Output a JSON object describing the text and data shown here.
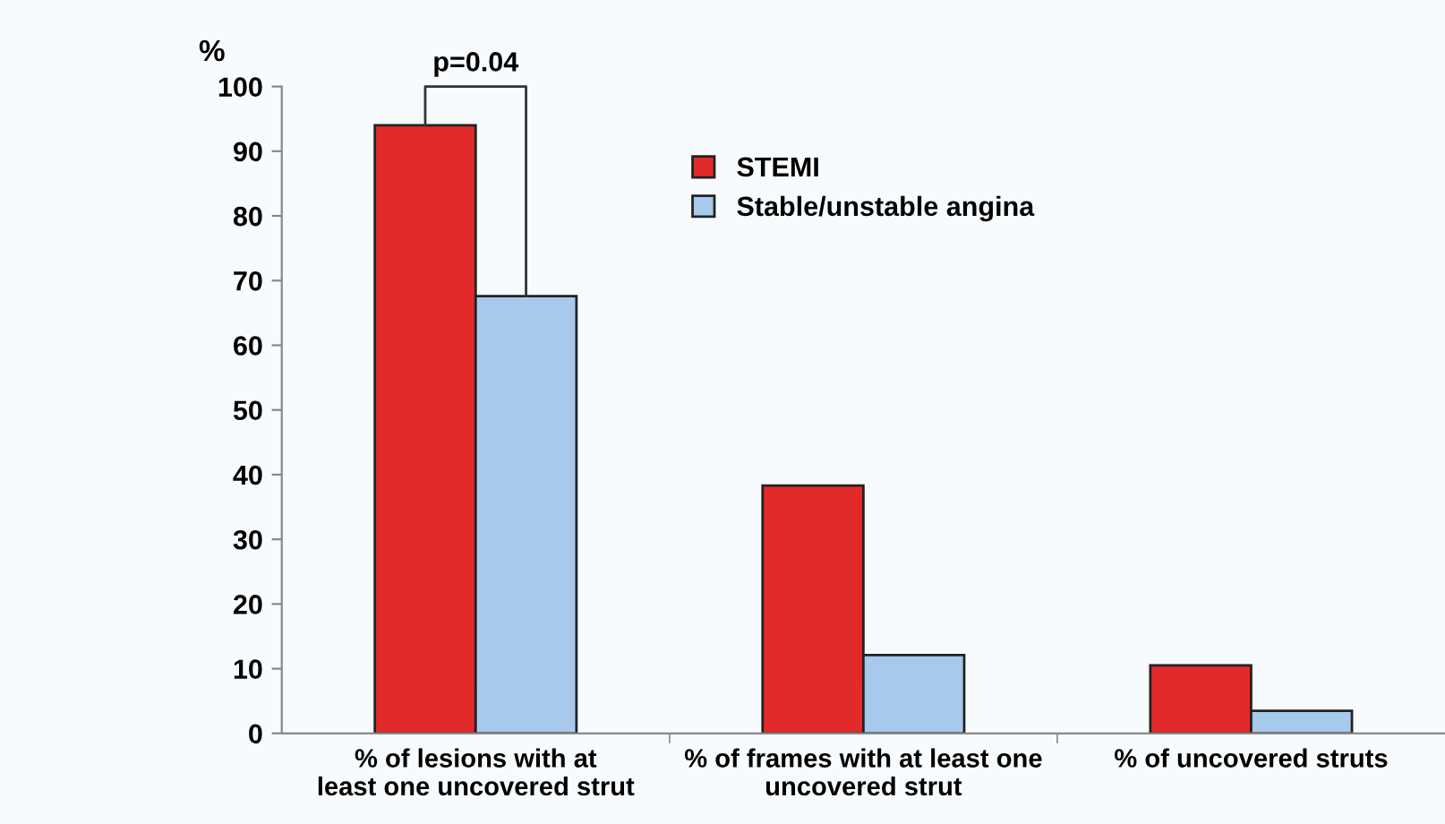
{
  "chart_data": {
    "type": "bar",
    "ylabel": "%",
    "categories": [
      "% of lesions with at\nleast one uncovered strut",
      "% of frames with at least one\nuncovered strut",
      "% of uncovered struts"
    ],
    "series": [
      {
        "name": "STEMI",
        "color": "#e32a2a",
        "values": [
          94,
          38.3,
          10.5
        ]
      },
      {
        "name": "Stable/unstable angina",
        "color": "#a7c9ec",
        "values": [
          67.6,
          12.1,
          3.5
        ]
      }
    ],
    "ylim": [
      0,
      100
    ],
    "yticks": [
      0,
      10,
      20,
      30,
      40,
      50,
      60,
      70,
      80,
      90,
      100
    ],
    "annotations": [
      "p=0.04"
    ],
    "legend": "top",
    "grid": false
  }
}
